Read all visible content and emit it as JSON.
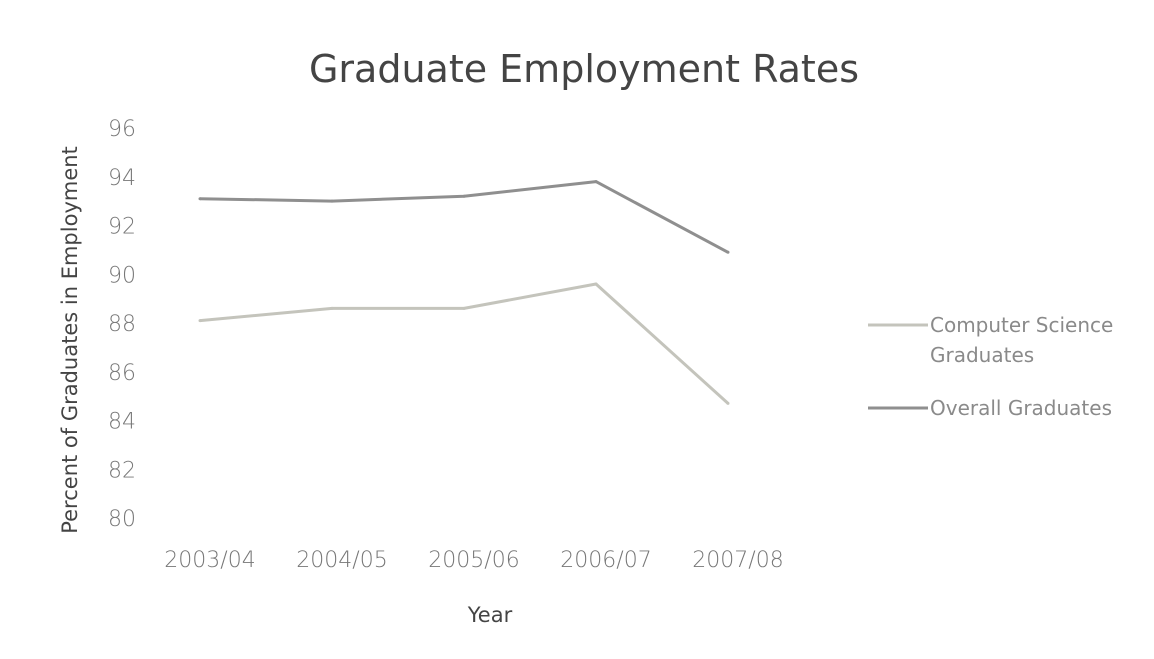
{
  "chart_data": {
    "type": "line",
    "title": "Graduate Employment Rates",
    "xlabel": "Year",
    "ylabel": "Percent of Graduates in Employment",
    "categories": [
      "2003/04",
      "2004/05",
      "2005/06",
      "2006/07",
      "2007/08"
    ],
    "ylim": [
      80,
      96
    ],
    "yticks": [
      80,
      82,
      84,
      86,
      88,
      90,
      92,
      94,
      96
    ],
    "grid": false,
    "legend_position": "right",
    "series": [
      {
        "name": "Computer Science Graduates",
        "values": [
          88.1,
          88.6,
          88.6,
          89.6,
          84.7
        ],
        "color": "#c4c4bc"
      },
      {
        "name": "Overall Graduates",
        "values": [
          93.1,
          93.0,
          93.2,
          93.8,
          90.9
        ],
        "color": "#8f8f8f"
      }
    ],
    "legend_lines": [
      [
        "Computer Science",
        "Graduates"
      ],
      [
        "Overall Graduates"
      ]
    ]
  }
}
